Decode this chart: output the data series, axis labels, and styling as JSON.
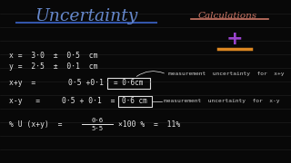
{
  "background_color": "#080808",
  "title_text": "Uncertainty",
  "title_color": "#6688cc",
  "title_underline_color": "#3355aa",
  "subtitle_text": "Calculations",
  "subtitle_color": "#cc7766",
  "subtitle_underline_color": "#cc7766",
  "plus_color": "#9944cc",
  "minus_color": "#dd8822",
  "text_color": "#e8e8e8",
  "box_color": "#dddddd",
  "line_color": "#333333",
  "note_color": "#cccccc",
  "line1": "x =  3·0  ±  0·5  cm",
  "line2": "y =  2·5  ±  0·1  cm",
  "line3a": "x+y  =",
  "line3b": "0·5 +0·1",
  "line3box": "= 0·6cm",
  "line3note": "measurement  uncertainty  for  x+y",
  "line4a": "x-y   =",
  "line4b": "0·5 + 0·1  =",
  "line4box": "0·6 cm",
  "line4note": "measurement  uncertainty  for  x-y",
  "line5left": "% U (x+y)  =",
  "frac_top": "0·6",
  "frac_bot": "5·5",
  "line5right": "×100 %  =  11%"
}
